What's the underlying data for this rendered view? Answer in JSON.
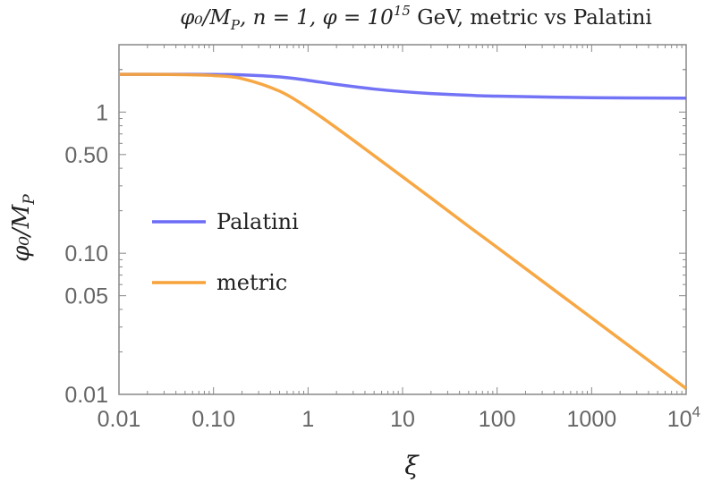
{
  "chart_data": {
    "type": "line",
    "title": "φ0/MP, n = 1, φ = 10^15 GeV, metric vs Palatini",
    "title_parts": {
      "main": "φ₀/M",
      "sub": "P",
      "mid": ", n = 1, φ = 10",
      "sup": "15",
      "tail": " GeV, metric vs Palatini"
    },
    "xlabel": "ξ",
    "ylabel": {
      "main": "φ₀/M",
      "sub": "P"
    },
    "x_scale": "log",
    "y_scale": "log",
    "xlim": [
      0.01,
      10000
    ],
    "ylim": [
      0.01,
      3
    ],
    "grid": false,
    "legend_placement": "center-left",
    "x_ticks": [
      {
        "value": 0.01,
        "label": "0.01"
      },
      {
        "value": 0.1,
        "label": "0.10"
      },
      {
        "value": 1,
        "label": "1"
      },
      {
        "value": 10,
        "label": "10"
      },
      {
        "value": 100,
        "label": "100"
      },
      {
        "value": 1000,
        "label": "1000"
      },
      {
        "value": 10000,
        "label": "10",
        "sup": "4"
      }
    ],
    "y_ticks": [
      {
        "value": 1,
        "label": "1"
      },
      {
        "value": 0.5,
        "label": "0.50"
      },
      {
        "value": 0.1,
        "label": "0.10"
      },
      {
        "value": 0.05,
        "label": "0.05"
      },
      {
        "value": 0.01,
        "label": "0.01"
      }
    ],
    "x": [
      0.01,
      0.02,
      0.05,
      0.1,
      0.2,
      0.5,
      1,
      2,
      5,
      10,
      20,
      50,
      100,
      1000,
      10000
    ],
    "series": [
      {
        "name": "Palatini",
        "color": "#6b6bf5",
        "values": [
          1.85,
          1.85,
          1.849,
          1.846,
          1.834,
          1.774,
          1.678,
          1.57,
          1.456,
          1.396,
          1.353,
          1.315,
          1.296,
          1.265,
          1.255
        ]
      },
      {
        "name": "metric",
        "color": "#f7a23a",
        "values": [
          1.85,
          1.85,
          1.84,
          1.815,
          1.726,
          1.406,
          1.068,
          0.772,
          0.491,
          0.348,
          0.246,
          0.155,
          0.11,
          0.0348,
          0.011
        ]
      }
    ]
  }
}
